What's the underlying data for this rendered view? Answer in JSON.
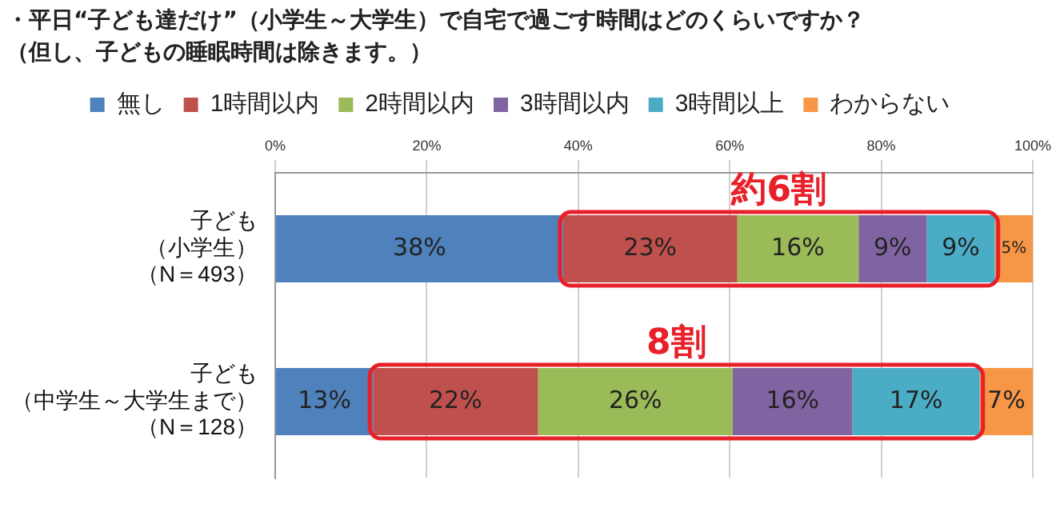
{
  "chart_data": {
    "type": "bar",
    "orientation": "horizontal",
    "stacked": true,
    "title": "・平日“子ども達だけ”（小学生～大学生）で自宅で過ごす時間はどのくらいですか？",
    "subtitle": "（但し、子どもの睡眠時間は除きます。）",
    "categories": [
      "子ども（小学生）（N＝493）",
      "子ども（中学生～大学生まで）（N＝128）"
    ],
    "series": [
      {
        "name": "無し",
        "color": "#4f81bd",
        "values": [
          38,
          12.9
        ],
        "value_labels": [
          "38%",
          "13%"
        ]
      },
      {
        "name": "1時間以内",
        "color": "#c0504d",
        "values": [
          23,
          21.8
        ],
        "value_labels": [
          "23%",
          "22%"
        ]
      },
      {
        "name": "2時間以内",
        "color": "#9bbb59",
        "values": [
          16,
          25.7
        ],
        "value_labels": [
          "16%",
          "26%"
        ]
      },
      {
        "name": "3時間以内",
        "color": "#8064a2",
        "values": [
          9,
          15.8
        ],
        "value_labels": [
          "9%",
          "16%"
        ]
      },
      {
        "name": "3時間以上",
        "color": "#4bacc6",
        "values": [
          9,
          16.8
        ],
        "value_labels": [
          "9%",
          "17%"
        ]
      },
      {
        "name": "わからない",
        "color": "#f79646",
        "values": [
          5,
          7.0
        ],
        "value_labels": [
          "5%",
          "7%"
        ]
      }
    ],
    "xlim": [
      0,
      100
    ],
    "xticks": [
      {
        "value": 0,
        "label": "0%"
      },
      {
        "value": 20,
        "label": "20%"
      },
      {
        "value": 40,
        "label": "40%"
      },
      {
        "value": 60,
        "label": "60%"
      },
      {
        "value": 80,
        "label": "80%"
      },
      {
        "value": 100,
        "label": "100%"
      }
    ],
    "grid": "x",
    "legend": "top",
    "annotations": [
      "約6割",
      "8割"
    ]
  }
}
